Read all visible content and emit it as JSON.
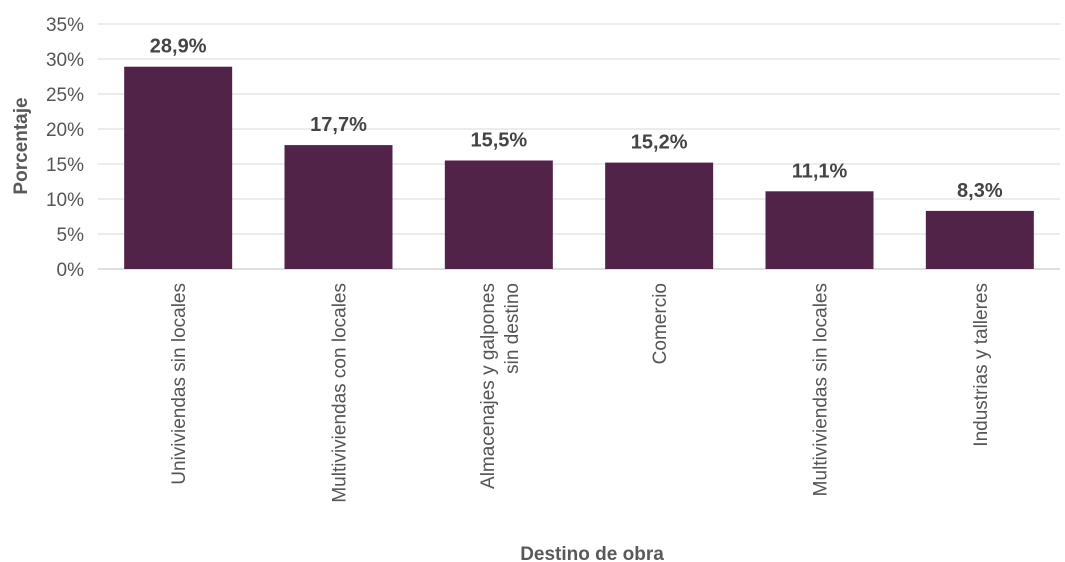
{
  "chart_data": {
    "type": "bar",
    "title": "",
    "xlabel": "Destino de obra",
    "ylabel": "Porcentaje",
    "ylim": [
      0,
      35
    ],
    "yticks": [
      "0%",
      "5%",
      "10%",
      "15%",
      "20%",
      "25%",
      "30%",
      "35%"
    ],
    "grid": true,
    "categories": [
      [
        "Univiviendas sin locales"
      ],
      [
        "Multiviviendas con locales"
      ],
      [
        "Almacenajes y galpones",
        "sin destino"
      ],
      [
        "Comercio"
      ],
      [
        "Multiviviendas sin locales"
      ],
      [
        "Industrias y talleres"
      ]
    ],
    "values": [
      28.9,
      17.7,
      15.5,
      15.2,
      11.1,
      8.3
    ],
    "data_labels": [
      "28,9%",
      "17,7%",
      "15,5%",
      "15,2%",
      "11,1%",
      "8,3%"
    ],
    "bar_color": "#522348"
  }
}
